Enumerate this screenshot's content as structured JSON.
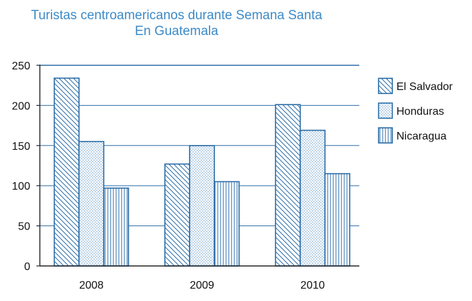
{
  "chart_data": {
    "type": "bar",
    "title": "Turistas centroamericanos durante Semana Santa",
    "subtitle": "En Guatemala",
    "categories": [
      "2008",
      "2009",
      "2010"
    ],
    "series": [
      {
        "name": "El Salvador",
        "values": [
          234,
          127,
          201
        ],
        "pattern": "diagonal-hatch"
      },
      {
        "name": "Honduras",
        "values": [
          155,
          150,
          169
        ],
        "pattern": "dots"
      },
      {
        "name": "Nicaragua",
        "values": [
          97,
          105,
          115
        ],
        "pattern": "vertical-lines"
      }
    ],
    "ylim": [
      0,
      250
    ],
    "yticks": [
      0,
      50,
      100,
      150,
      200,
      250
    ],
    "grid": true,
    "legend_position": "right",
    "colors": {
      "accent": "#2b6da8",
      "title": "#3d8ac7",
      "grid": "#2b6da8"
    }
  }
}
